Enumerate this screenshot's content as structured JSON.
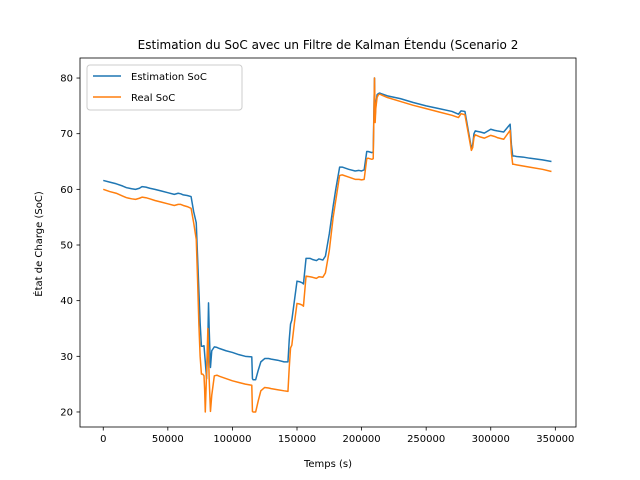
{
  "chart_data": {
    "type": "line",
    "title": "Estimation du SoC avec un Filtre de Kalman Étendu (Scenario 2",
    "xlabel": "Temps (s)",
    "ylabel": "État de Charge (SoC)",
    "xlim": [
      -18000,
      366000
    ],
    "ylim": [
      17.3,
      83.6
    ],
    "xticks": [
      0,
      50000,
      100000,
      150000,
      200000,
      250000,
      300000,
      350000
    ],
    "xtick_labels": [
      "0",
      "50000",
      "100000",
      "150000",
      "200000",
      "250000",
      "300000",
      "350000"
    ],
    "yticks": [
      20,
      30,
      40,
      50,
      60,
      70,
      80
    ],
    "ytick_labels": [
      "20",
      "30",
      "40",
      "50",
      "60",
      "70",
      "80"
    ],
    "grid": false,
    "legend_position": "upper-left",
    "series": [
      {
        "name": "Estimation SoC",
        "color": "#1f77b4",
        "x": [
          0,
          5000,
          10000,
          15000,
          18000,
          22000,
          25000,
          28000,
          30000,
          33000,
          36000,
          40000,
          45000,
          50000,
          55000,
          58000,
          60000,
          62000,
          65000,
          68000,
          70000,
          72000,
          73000,
          74000,
          75000,
          76000,
          77000,
          78000,
          79000,
          80000,
          81000,
          81500,
          82000,
          83000,
          84000,
          86000,
          88000,
          90000,
          95000,
          100000,
          105000,
          110000,
          115000,
          115500,
          116000,
          118000,
          120000,
          122000,
          125000,
          128000,
          130000,
          135000,
          140000,
          143000,
          144000,
          145000,
          146000,
          148000,
          150000,
          152000,
          154000,
          155000,
          157000,
          160000,
          162000,
          165000,
          167000,
          170000,
          172000,
          175000,
          178000,
          180000,
          183000,
          185000,
          190000,
          195000,
          198000,
          200000,
          202000,
          204000,
          205000,
          208000,
          209000,
          210000,
          210500,
          211000,
          212000,
          213000,
          214000,
          215000,
          220000,
          230000,
          240000,
          250000,
          260000,
          270000,
          275000,
          277000,
          280000,
          285000,
          286000,
          287000,
          288000,
          290000,
          292000,
          295000,
          300000,
          303000,
          305000,
          310000,
          315000,
          316000,
          317000,
          318000,
          320000,
          325000,
          330000,
          340000,
          347000
        ],
        "y": [
          61.6,
          61.3,
          61.0,
          60.6,
          60.3,
          60.1,
          60.0,
          60.2,
          60.5,
          60.4,
          60.2,
          60.0,
          59.7,
          59.4,
          59.1,
          59.3,
          59.2,
          59.0,
          58.9,
          58.7,
          56.0,
          54.0,
          48.0,
          42.0,
          36.0,
          31.8,
          31.8,
          31.9,
          29.0,
          26.0,
          33.0,
          39.6,
          35.0,
          28.0,
          31.0,
          31.7,
          31.6,
          31.4,
          31.0,
          30.7,
          30.3,
          30.0,
          29.9,
          26.0,
          25.8,
          25.8,
          27.5,
          29.0,
          29.6,
          29.6,
          29.5,
          29.3,
          29.0,
          29.0,
          33.0,
          35.8,
          36.5,
          40.0,
          43.5,
          43.4,
          43.2,
          43.0,
          47.6,
          47.6,
          47.4,
          47.2,
          47.5,
          47.3,
          48.0,
          52.0,
          57.0,
          60.0,
          64.0,
          64.0,
          63.6,
          63.3,
          63.4,
          63.3,
          63.5,
          66.8,
          66.8,
          66.6,
          66.7,
          80.0,
          73.0,
          75.0,
          77.0,
          77.2,
          77.3,
          77.2,
          76.8,
          76.3,
          75.6,
          75.0,
          74.5,
          74.0,
          73.5,
          74.1,
          74.0,
          67.4,
          68.0,
          70.0,
          70.5,
          70.4,
          70.3,
          70.1,
          70.8,
          70.6,
          70.5,
          70.3,
          71.7,
          68.0,
          66.0,
          66.0,
          65.9,
          65.8,
          65.6,
          65.3,
          65.0
        ]
      },
      {
        "name": "Real SoC",
        "color": "#ff7f0e",
        "x": [
          0,
          5000,
          10000,
          15000,
          18000,
          22000,
          25000,
          28000,
          30000,
          33000,
          36000,
          40000,
          45000,
          50000,
          55000,
          58000,
          60000,
          62000,
          65000,
          68000,
          70000,
          72000,
          73000,
          74000,
          75000,
          76000,
          77000,
          78000,
          78500,
          79000,
          80000,
          81000,
          82000,
          83000,
          84000,
          86000,
          88000,
          90000,
          95000,
          100000,
          105000,
          110000,
          115000,
          115500,
          116000,
          118000,
          120000,
          122000,
          125000,
          128000,
          130000,
          135000,
          140000,
          143000,
          144000,
          145000,
          146000,
          148000,
          150000,
          152000,
          154000,
          155000,
          157000,
          160000,
          162000,
          165000,
          167000,
          170000,
          172000,
          175000,
          178000,
          180000,
          183000,
          185000,
          190000,
          195000,
          198000,
          200000,
          202000,
          204000,
          205000,
          208000,
          209000,
          210000,
          210500,
          211000,
          212000,
          213000,
          214000,
          215000,
          220000,
          230000,
          240000,
          250000,
          260000,
          270000,
          275000,
          277000,
          280000,
          285000,
          286000,
          287000,
          288000,
          290000,
          292000,
          295000,
          300000,
          303000,
          305000,
          310000,
          315000,
          316000,
          317000,
          318000,
          320000,
          325000,
          330000,
          340000,
          347000
        ],
        "y": [
          60.0,
          59.6,
          59.3,
          58.8,
          58.5,
          58.3,
          58.2,
          58.4,
          58.6,
          58.5,
          58.3,
          58.0,
          57.7,
          57.4,
          57.1,
          57.3,
          57.3,
          57.1,
          56.9,
          56.6,
          54.0,
          51.0,
          44.0,
          36.0,
          30.0,
          26.8,
          26.8,
          26.5,
          24.0,
          20.0,
          27.0,
          35.0,
          26.0,
          20.1,
          23.0,
          26.5,
          26.6,
          26.4,
          26.0,
          25.6,
          25.3,
          25.0,
          24.8,
          20.1,
          20.0,
          20.0,
          22.0,
          23.8,
          24.4,
          24.3,
          24.2,
          24.0,
          23.8,
          23.7,
          28.0,
          31.5,
          32.0,
          36.0,
          39.5,
          39.4,
          39.2,
          39.0,
          44.4,
          44.3,
          44.2,
          44.0,
          44.3,
          44.2,
          45.0,
          49.0,
          55.0,
          58.0,
          62.5,
          62.6,
          62.2,
          61.8,
          61.8,
          61.7,
          61.8,
          65.5,
          65.6,
          65.4,
          65.5,
          80.0,
          72.0,
          74.5,
          76.5,
          77.0,
          77.1,
          77.0,
          76.5,
          75.8,
          75.1,
          74.5,
          73.9,
          73.3,
          72.9,
          73.6,
          73.4,
          67.0,
          67.5,
          69.3,
          69.8,
          69.6,
          69.4,
          69.2,
          69.7,
          69.5,
          69.3,
          69.0,
          70.6,
          66.5,
          64.5,
          64.5,
          64.4,
          64.2,
          64.0,
          63.6,
          63.2
        ]
      }
    ]
  }
}
